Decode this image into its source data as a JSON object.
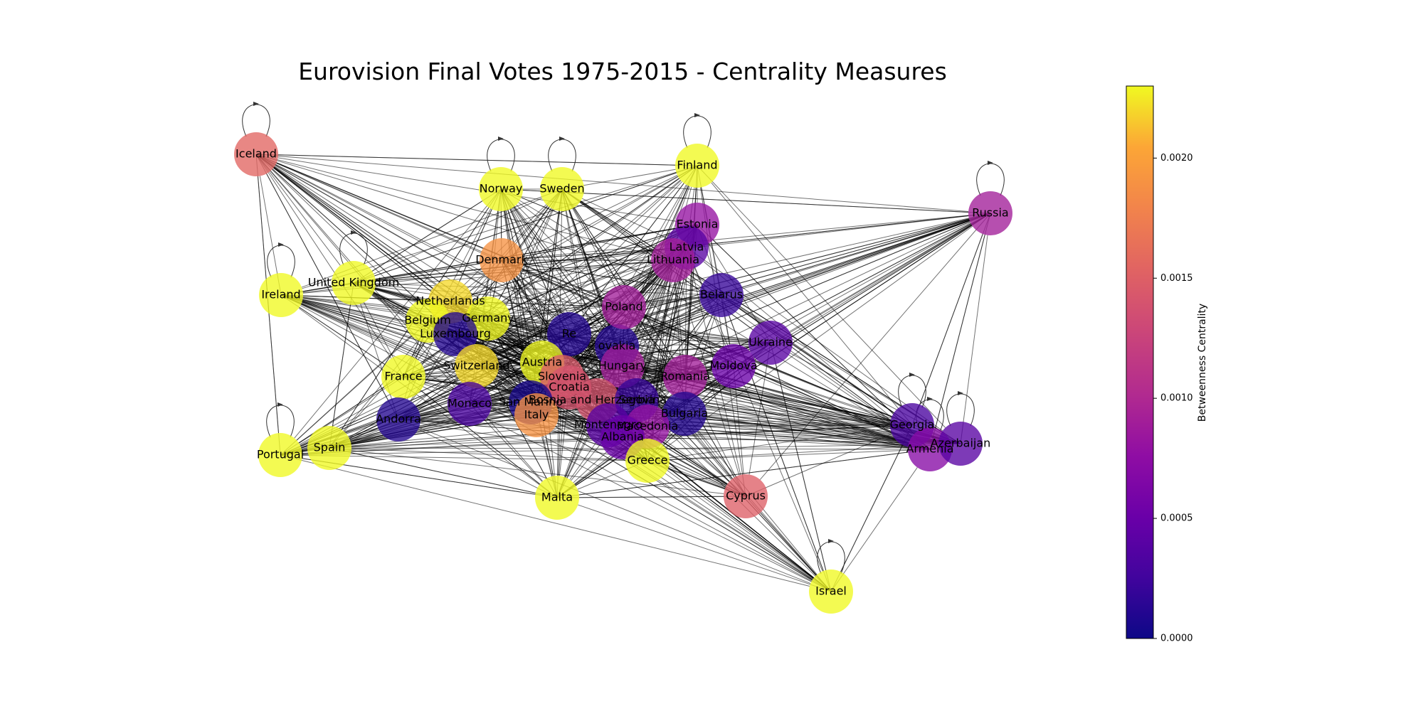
{
  "title": "Eurovision Final Votes 1975-2015 - Centrality Measures",
  "colorbar": {
    "label": "Betweenness Centrality",
    "ticks": [
      "0.0000",
      "0.0005",
      "0.0010",
      "0.0015",
      "0.0020"
    ],
    "tick_values": [
      0,
      0.0005,
      0.001,
      0.0015,
      0.002
    ],
    "min": 0,
    "max": 0.0023,
    "colormap": "plasma"
  },
  "nodes": [
    {
      "id": "Iceland",
      "label": "Iceland",
      "centrality": 0.00155,
      "self_loop": true
    },
    {
      "id": "Norway",
      "label": "Norway",
      "centrality": 0.0023,
      "self_loop": true
    },
    {
      "id": "Sweden",
      "label": "Sweden",
      "centrality": 0.0023,
      "self_loop": true
    },
    {
      "id": "Finland",
      "label": "Finland",
      "centrality": 0.0023,
      "self_loop": true
    },
    {
      "id": "Russia",
      "label": "Russia",
      "centrality": 0.0009,
      "self_loop": true
    },
    {
      "id": "Estonia",
      "label": "Estonia",
      "centrality": 0.0008,
      "self_loop": false
    },
    {
      "id": "Latvia",
      "label": "Latvia",
      "centrality": 0.0004,
      "self_loop": false
    },
    {
      "id": "Lithuania",
      "label": "Lithuania",
      "centrality": 0.0009,
      "self_loop": false
    },
    {
      "id": "Denmark",
      "label": "Denmark",
      "centrality": 0.0019,
      "self_loop": false
    },
    {
      "id": "Ireland",
      "label": "Ireland",
      "centrality": 0.0023,
      "self_loop": true
    },
    {
      "id": "United Kingdom",
      "label": "United Kingdom",
      "centrality": 0.0023,
      "self_loop": true
    },
    {
      "id": "Netherlands",
      "label": "Netherlands",
      "centrality": 0.0022,
      "self_loop": false
    },
    {
      "id": "Germany",
      "label": "Germany",
      "centrality": 0.0023,
      "self_loop": false
    },
    {
      "id": "Belgium",
      "label": "Belgium",
      "centrality": 0.0023,
      "self_loop": false
    },
    {
      "id": "Luxembourg",
      "label": "Luxembourg",
      "centrality": 0.0001,
      "self_loop": false
    },
    {
      "id": "Czech Republic",
      "label": "Re",
      "centrality": 0.0001,
      "self_loop": false
    },
    {
      "id": "Slovakia",
      "label": "ovakia",
      "centrality": 0.0001,
      "self_loop": false
    },
    {
      "id": "Poland",
      "label": "Poland",
      "centrality": 0.0009,
      "self_loop": false
    },
    {
      "id": "Belarus",
      "label": "Belarus",
      "centrality": 0.0002,
      "self_loop": false
    },
    {
      "id": "Ukraine",
      "label": "Ukraine",
      "centrality": 0.0004,
      "self_loop": false
    },
    {
      "id": "Moldova",
      "label": "Moldova",
      "centrality": 0.0005,
      "self_loop": false
    },
    {
      "id": "Romania",
      "label": "Romania",
      "centrality": 0.0009,
      "self_loop": false
    },
    {
      "id": "Hungary",
      "label": "Hungary",
      "centrality": 0.0009,
      "self_loop": false
    },
    {
      "id": "Austria",
      "label": "Austria",
      "centrality": 0.0023,
      "self_loop": false
    },
    {
      "id": "Switzerland",
      "label": "Switzerland",
      "centrality": 0.0022,
      "self_loop": false
    },
    {
      "id": "France",
      "label": "France",
      "centrality": 0.0023,
      "self_loop": false
    },
    {
      "id": "Slovenia",
      "label": "Slovenia",
      "centrality": 0.00145,
      "self_loop": false
    },
    {
      "id": "Croatia",
      "label": "Croatia",
      "centrality": 0.0014,
      "self_loop": false
    },
    {
      "id": "Bosnia and Herzegovina",
      "label": "Bosnia and Herzegovina",
      "centrality": 0.0014,
      "self_loop": false
    },
    {
      "id": "Serbia",
      "label": "Serbia",
      "centrality": 0.0002,
      "self_loop": false
    },
    {
      "id": "San Marino",
      "label": "San Marino",
      "centrality": 5e-05,
      "self_loop": false
    },
    {
      "id": "Italy",
      "label": "Italy",
      "centrality": 0.0019,
      "self_loop": false
    },
    {
      "id": "Monaco",
      "label": "Monaco",
      "centrality": 0.0003,
      "self_loop": false
    },
    {
      "id": "Andorra",
      "label": "Andorra",
      "centrality": 0.0001,
      "self_loop": false
    },
    {
      "id": "Bulgaria",
      "label": "Bulgaria",
      "centrality": 0.0001,
      "self_loop": false
    },
    {
      "id": "Montenegro",
      "label": "Montenegro",
      "centrality": 0.0004,
      "self_loop": false
    },
    {
      "id": "Macedonia",
      "label": "Macedonia",
      "centrality": 0.0008,
      "self_loop": false
    },
    {
      "id": "Albania",
      "label": "Albania",
      "centrality": 0.0005,
      "self_loop": false
    },
    {
      "id": "Greece",
      "label": "Greece",
      "centrality": 0.0023,
      "self_loop": false
    },
    {
      "id": "Malta",
      "label": "Malta",
      "centrality": 0.0023,
      "self_loop": false
    },
    {
      "id": "Cyprus",
      "label": "Cyprus",
      "centrality": 0.0015,
      "self_loop": false
    },
    {
      "id": "Israel",
      "label": "Israel",
      "centrality": 0.0023,
      "self_loop": true
    },
    {
      "id": "Georgia",
      "label": "Georgia",
      "centrality": 0.0003,
      "self_loop": true
    },
    {
      "id": "Armenia",
      "label": "Armenia",
      "centrality": 0.0007,
      "self_loop": true
    },
    {
      "id": "Azerbaijan",
      "label": "Azerbaijan",
      "centrality": 0.0004,
      "self_loop": true
    },
    {
      "id": "Portugal",
      "label": "Portugal",
      "centrality": 0.0023,
      "self_loop": true
    },
    {
      "id": "Spain",
      "label": "Spain",
      "centrality": 0.0023,
      "self_loop": false
    }
  ]
}
